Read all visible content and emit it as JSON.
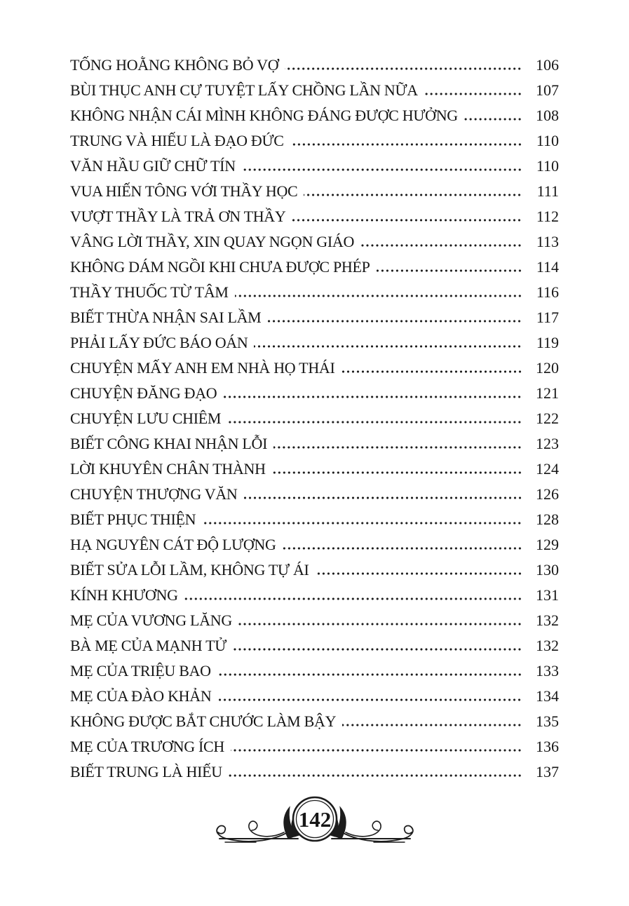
{
  "page": {
    "background_color": "#ffffff",
    "text_color": "#161616"
  },
  "toc": {
    "entries": [
      {
        "title": "TỐNG HOẰNG KHÔNG BỎ VỢ",
        "page": "106"
      },
      {
        "title": "BÙI THỤC ANH CỰ TUYỆT LẤY CHỒNG LẦN NỮA",
        "page": "107"
      },
      {
        "title": "KHÔNG NHẬN CÁI MÌNH KHÔNG ĐÁNG ĐƯỢC HƯỞNG",
        "page": "108"
      },
      {
        "title": "TRUNG VÀ HIẾU LÀ ĐẠO ĐỨC",
        "page": "110"
      },
      {
        "title": "VĂN HẦU GIỮ CHỮ TÍN",
        "page": "110"
      },
      {
        "title": "VUA HIẾN TÔNG VỚI THẦY HỌC",
        "page": "111"
      },
      {
        "title": "VƯỢT THẦY LÀ TRẢ ƠN THẦY",
        "page": "112"
      },
      {
        "title": "VÂNG LỜI THẦY, XIN QUAY NGỌN GIÁO",
        "page": "113"
      },
      {
        "title": "KHÔNG DÁM NGỒI KHI CHƯA ĐƯỢC PHÉP",
        "page": "114"
      },
      {
        "title": "THẦY THUỐC TỪ TÂM",
        "page": "116"
      },
      {
        "title": "BIẾT THỪA NHẬN SAI LẦM",
        "page": "117"
      },
      {
        "title": "PHẢI LẤY ĐỨC BÁO OÁN",
        "page": "119"
      },
      {
        "title": "CHUYỆN MẤY ANH EM NHÀ HỌ THÁI",
        "page": "120"
      },
      {
        "title": "CHUYỆN ĐĂNG ĐẠO",
        "page": "121"
      },
      {
        "title": "CHUYỆN LƯU CHIÊM",
        "page": "122"
      },
      {
        "title": "BIẾT CÔNG KHAI NHẬN LỖI",
        "page": "123"
      },
      {
        "title": "LỜI KHUYÊN CHÂN THÀNH",
        "page": "124"
      },
      {
        "title": "CHUYỆN THƯỢNG VĂN",
        "page": "126"
      },
      {
        "title": "BIẾT PHỤC THIỆN",
        "page": "128"
      },
      {
        "title": "HẠ NGUYÊN CÁT ĐỘ LƯỢNG",
        "page": "129"
      },
      {
        "title": "BIẾT SỬA LỖI LẦM, KHÔNG TỰ ÁI",
        "page": "130"
      },
      {
        "title": "KÍNH KHƯƠNG",
        "page": "131"
      },
      {
        "title": "MẸ CỦA VƯƠNG LĂNG",
        "page": "132"
      },
      {
        "title": "BÀ MẸ CỦA MẠNH TỬ",
        "page": "132"
      },
      {
        "title": "MẸ CỦA TRIỆU BAO",
        "page": "133"
      },
      {
        "title": "MẸ CỦA ĐÀO KHẢN",
        "page": "134"
      },
      {
        "title": "KHÔNG ĐƯỢC BẮT CHƯỚC LÀM BẬY",
        "page": "135"
      },
      {
        "title": "MẸ CỦA TRƯƠNG ÍCH",
        "page": "136"
      },
      {
        "title": "BIẾT TRUNG LÀ HIẾU",
        "page": "137"
      }
    ]
  },
  "footer": {
    "page_number": "142",
    "ornament": "flourish-divider-icon",
    "ornament_color": "#1c1c1c"
  }
}
